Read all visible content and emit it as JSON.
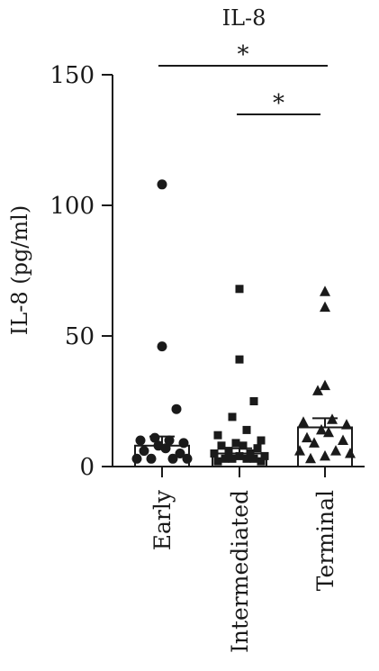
{
  "chart_data": {
    "type": "scatter",
    "title": "IL-8",
    "xlabel": "",
    "ylabel": "IL-8 (pg/ml)",
    "ylim": [
      0,
      150
    ],
    "yticks": [
      0,
      50,
      100,
      150
    ],
    "grid": false,
    "categories": [
      "Early",
      "Intermediated",
      "Terminal"
    ],
    "series": [
      {
        "category": "Early",
        "marker": "circle",
        "bar_mean": 8,
        "error_sd": 3.5,
        "points": [
          108,
          46,
          22,
          11,
          10,
          10,
          9,
          8,
          7,
          6,
          5,
          3,
          3,
          3,
          3
        ]
      },
      {
        "category": "Intermediated",
        "marker": "square",
        "bar_mean": 5,
        "error_sd": 2,
        "points": [
          68,
          41,
          25,
          19,
          14,
          12,
          10,
          9,
          8,
          8,
          7,
          6,
          5,
          5,
          4,
          4,
          3,
          3,
          3,
          3,
          2,
          2
        ]
      },
      {
        "category": "Terminal",
        "marker": "triangle",
        "bar_mean": 15,
        "error_sd": 3.5,
        "points": [
          67,
          61,
          31,
          29,
          18,
          17,
          16,
          14,
          13,
          11,
          10,
          9,
          6,
          6,
          5,
          4,
          3
        ]
      }
    ],
    "significance": [
      {
        "from": "Early",
        "to": "Terminal",
        "label": "*"
      },
      {
        "from": "Intermediated",
        "to": "Terminal",
        "label": "*"
      }
    ]
  }
}
